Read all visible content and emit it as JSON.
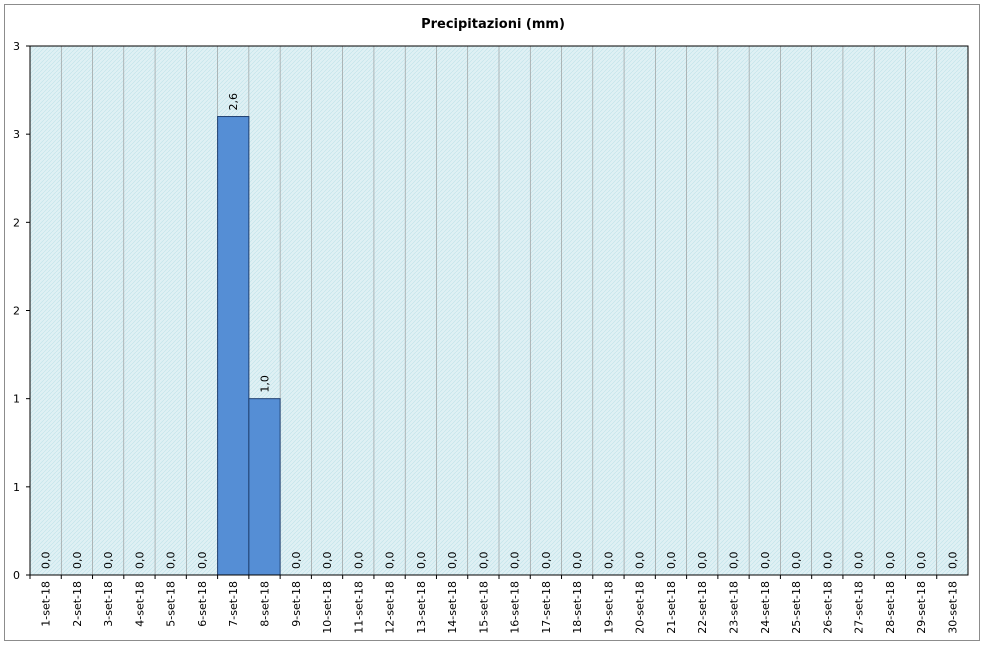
{
  "chart_data": {
    "type": "bar",
    "title": "Precipitazioni (mm)",
    "xlabel": "",
    "ylabel": "",
    "ylim": [
      0,
      3
    ],
    "y_tick_labels": [
      "0",
      "1",
      "1",
      "2",
      "2",
      "3",
      "3"
    ],
    "categories": [
      "1-set-18",
      "2-set-18",
      "3-set-18",
      "4-set-18",
      "5-set-18",
      "6-set-18",
      "7-set-18",
      "8-set-18",
      "9-set-18",
      "10-set-18",
      "11-set-18",
      "12-set-18",
      "13-set-18",
      "14-set-18",
      "15-set-18",
      "16-set-18",
      "17-set-18",
      "18-set-18",
      "19-set-18",
      "20-set-18",
      "21-set-18",
      "22-set-18",
      "23-set-18",
      "24-set-18",
      "25-set-18",
      "26-set-18",
      "27-set-18",
      "28-set-18",
      "29-set-18",
      "30-set-18"
    ],
    "values": [
      0,
      0,
      0,
      0,
      0,
      0,
      2.6,
      1.0,
      0,
      0,
      0,
      0,
      0,
      0,
      0,
      0,
      0,
      0,
      0,
      0,
      0,
      0,
      0,
      0,
      0,
      0,
      0,
      0,
      0,
      0
    ],
    "data_labels": [
      "0,0",
      "0,0",
      "0,0",
      "0,0",
      "0,0",
      "0,0",
      "2,6",
      "1,0",
      "0,0",
      "0,0",
      "0,0",
      "0,0",
      "0,0",
      "0,0",
      "0,0",
      "0,0",
      "0,0",
      "0,0",
      "0,0",
      "0,0",
      "0,0",
      "0,0",
      "0,0",
      "0,0",
      "0,0",
      "0,0",
      "0,0",
      "0,0",
      "0,0",
      "0,0"
    ],
    "grid": true,
    "legend": "none",
    "colors": {
      "bar_fill": "#558ed5",
      "bar_stroke": "#1f3f70",
      "plot_bg": "#dff0f4",
      "hatch": "#bfe3ea",
      "gridline": "#8f8f8f",
      "axis": "#000000"
    }
  }
}
